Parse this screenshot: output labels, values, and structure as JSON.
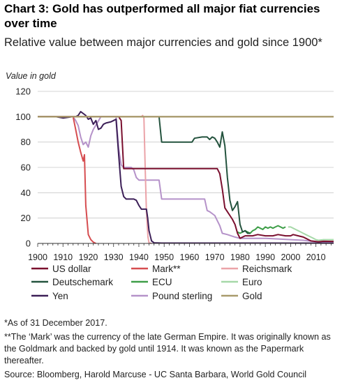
{
  "title": "Chart 3: Gold has outperformed all major fiat currencies over time",
  "subtitle": "Relative value between major currencies and gold since 1900*",
  "notes": {
    "footnote_1": "*As of 31 December 2017.",
    "footnote_2": "**The ‘Mark’ was the currency of the late German Empire. It was originally known as the Goldmark and backed by gold until 1914. It was known as the Papermark thereafter.",
    "source": "Source: Bloomberg, Harold Marcuse - UC Santa Barbara, World Gold Council"
  },
  "chart_data": {
    "type": "line",
    "title": "Chart 3: Gold has outperformed all major fiat currencies over time",
    "subtitle": "Relative value between major currencies and gold since 1900*",
    "ylabel": "Value in gold",
    "xlabel": "",
    "xlim": [
      1900,
      2017
    ],
    "ylim": [
      0,
      120
    ],
    "x_ticks": [
      1900,
      1910,
      1920,
      1930,
      1940,
      1950,
      1960,
      1970,
      1980,
      1990,
      2000,
      2010
    ],
    "y_ticks": [
      0,
      20,
      40,
      60,
      80,
      100,
      120
    ],
    "grid": "horizontal",
    "legend_position": "bottom",
    "series": [
      {
        "name": "US dollar",
        "color": "#7a0f2e",
        "points": [
          [
            1900,
            100
          ],
          [
            1932,
            100
          ],
          [
            1933,
            97
          ],
          [
            1934,
            59
          ],
          [
            1971,
            59
          ],
          [
            1972,
            55
          ],
          [
            1973,
            43
          ],
          [
            1974,
            28
          ],
          [
            1975,
            25
          ],
          [
            1976,
            22
          ],
          [
            1977,
            19
          ],
          [
            1978,
            15
          ],
          [
            1979,
            8
          ],
          [
            1980,
            4
          ],
          [
            1982,
            6
          ],
          [
            1985,
            6
          ],
          [
            1987,
            7
          ],
          [
            1990,
            6
          ],
          [
            1993,
            6
          ],
          [
            1995,
            7
          ],
          [
            1998,
            6
          ],
          [
            2000,
            6
          ],
          [
            2001,
            7
          ],
          [
            2003,
            6
          ],
          [
            2005,
            5
          ],
          [
            2006,
            4
          ],
          [
            2008,
            2
          ],
          [
            2011,
            1.3
          ],
          [
            2013,
            1.7
          ],
          [
            2017,
            1.6
          ]
        ]
      },
      {
        "name": "Mark**",
        "color": "#d64d50",
        "points": [
          [
            1900,
            100
          ],
          [
            1914,
            100
          ],
          [
            1915,
            90
          ],
          [
            1916,
            80
          ],
          [
            1917,
            72
          ],
          [
            1918,
            65
          ],
          [
            1918.5,
            70
          ],
          [
            1919,
            30
          ],
          [
            1920,
            7
          ],
          [
            1921,
            3
          ],
          [
            1922,
            1
          ],
          [
            1923,
            0
          ]
        ]
      },
      {
        "name": "Reichsmark",
        "color": "#eba3a8",
        "points": [
          [
            1924,
            100
          ],
          [
            1941,
            100
          ],
          [
            1941.5,
            101
          ],
          [
            1942,
            99
          ],
          [
            1942.5,
            60
          ],
          [
            1943,
            25
          ],
          [
            1943.6,
            5
          ],
          [
            1944,
            0.5
          ],
          [
            1945,
            0
          ]
        ]
      },
      {
        "name": "Deutschemark",
        "color": "#24533e",
        "points": [
          [
            1948,
            100
          ],
          [
            1949,
            80
          ],
          [
            1961,
            80
          ],
          [
            1962,
            83
          ],
          [
            1965,
            84
          ],
          [
            1967,
            84
          ],
          [
            1968,
            82
          ],
          [
            1969,
            84
          ],
          [
            1970,
            83
          ],
          [
            1971,
            80
          ],
          [
            1972,
            76
          ],
          [
            1973,
            88
          ],
          [
            1974,
            77
          ],
          [
            1975,
            52
          ],
          [
            1976,
            34
          ],
          [
            1977,
            26
          ],
          [
            1978,
            29
          ],
          [
            1979,
            33
          ],
          [
            1980,
            15
          ],
          [
            1981,
            9
          ],
          [
            1982,
            10
          ],
          [
            1983,
            8
          ],
          [
            1984,
            8
          ]
        ]
      },
      {
        "name": "ECU",
        "color": "#3e9e48",
        "points": [
          [
            1979,
            9
          ],
          [
            1980,
            8
          ],
          [
            1981,
            9
          ],
          [
            1982,
            10
          ],
          [
            1983,
            9
          ],
          [
            1984,
            8
          ],
          [
            1985,
            10
          ],
          [
            1986,
            11
          ],
          [
            1987,
            13
          ],
          [
            1988,
            12
          ],
          [
            1989,
            11
          ],
          [
            1990,
            13
          ],
          [
            1991,
            12
          ],
          [
            1992,
            13
          ],
          [
            1993,
            12
          ],
          [
            1994,
            13
          ],
          [
            1995,
            14
          ],
          [
            1996,
            13
          ],
          [
            1997,
            12
          ],
          [
            1998,
            13
          ]
        ]
      },
      {
        "name": "Euro",
        "color": "#a6d8a8",
        "points": [
          [
            1999,
            13
          ],
          [
            2000,
            13
          ],
          [
            2001,
            12
          ],
          [
            2002,
            11
          ],
          [
            2003,
            10
          ],
          [
            2004,
            9
          ],
          [
            2005,
            8
          ],
          [
            2006,
            7
          ],
          [
            2007,
            6
          ],
          [
            2008,
            5
          ],
          [
            2009,
            4
          ],
          [
            2010,
            3
          ],
          [
            2011,
            2.5
          ],
          [
            2013,
            3
          ],
          [
            2017,
            3
          ]
        ]
      },
      {
        "name": "Yen",
        "color": "#3c1f57",
        "points": [
          [
            1900,
            100
          ],
          [
            1907,
            100
          ],
          [
            1910,
            99
          ],
          [
            1914,
            100
          ],
          [
            1915,
            100
          ],
          [
            1916,
            101
          ],
          [
            1917,
            104
          ],
          [
            1919,
            101
          ],
          [
            1920,
            98
          ],
          [
            1921,
            99
          ],
          [
            1922,
            94
          ],
          [
            1923,
            97
          ],
          [
            1924,
            90
          ],
          [
            1925,
            91
          ],
          [
            1926,
            94
          ],
          [
            1927,
            95
          ],
          [
            1929,
            96
          ],
          [
            1930,
            97
          ],
          [
            1931,
            98
          ],
          [
            1932,
            70
          ],
          [
            1933,
            45
          ],
          [
            1934,
            37
          ],
          [
            1935,
            35
          ],
          [
            1938,
            35
          ],
          [
            1939,
            34
          ],
          [
            1940,
            30
          ],
          [
            1941,
            27
          ],
          [
            1943,
            27
          ],
          [
            1943.5,
            20
          ],
          [
            1944,
            10
          ],
          [
            1945,
            2
          ],
          [
            1946,
            0.5
          ],
          [
            1949,
            0.3
          ],
          [
            1971,
            0.3
          ],
          [
            2017,
            0.2
          ]
        ]
      },
      {
        "name": "Pound sterling",
        "color": "#b592c9",
        "points": [
          [
            1900,
            100
          ],
          [
            1914,
            100
          ],
          [
            1915,
            97
          ],
          [
            1916,
            93
          ],
          [
            1917,
            84
          ],
          [
            1918,
            78
          ],
          [
            1919,
            80
          ],
          [
            1920,
            76
          ],
          [
            1921,
            85
          ],
          [
            1922,
            90
          ],
          [
            1925,
            100
          ],
          [
            1931,
            100
          ],
          [
            1932,
            75
          ],
          [
            1933,
            62
          ],
          [
            1934,
            60
          ],
          [
            1937,
            60
          ],
          [
            1938,
            58
          ],
          [
            1939,
            52
          ],
          [
            1940,
            50
          ],
          [
            1948,
            50
          ],
          [
            1949,
            35
          ],
          [
            1966,
            35
          ],
          [
            1967,
            26
          ],
          [
            1968,
            25
          ],
          [
            1970,
            22
          ],
          [
            1971,
            18
          ],
          [
            1972,
            14
          ],
          [
            1973,
            8
          ],
          [
            1975,
            7
          ],
          [
            1978,
            5
          ],
          [
            1980,
            4
          ],
          [
            1985,
            4
          ],
          [
            1990,
            4
          ],
          [
            1995,
            3.5
          ],
          [
            2000,
            3
          ],
          [
            2005,
            2.5
          ],
          [
            2008,
            1.8
          ],
          [
            2011,
            1.1
          ],
          [
            2017,
            1.2
          ]
        ]
      },
      {
        "name": "Gold",
        "color": "#a89a6c",
        "points": [
          [
            1900,
            100
          ],
          [
            2017,
            100
          ]
        ]
      }
    ]
  }
}
